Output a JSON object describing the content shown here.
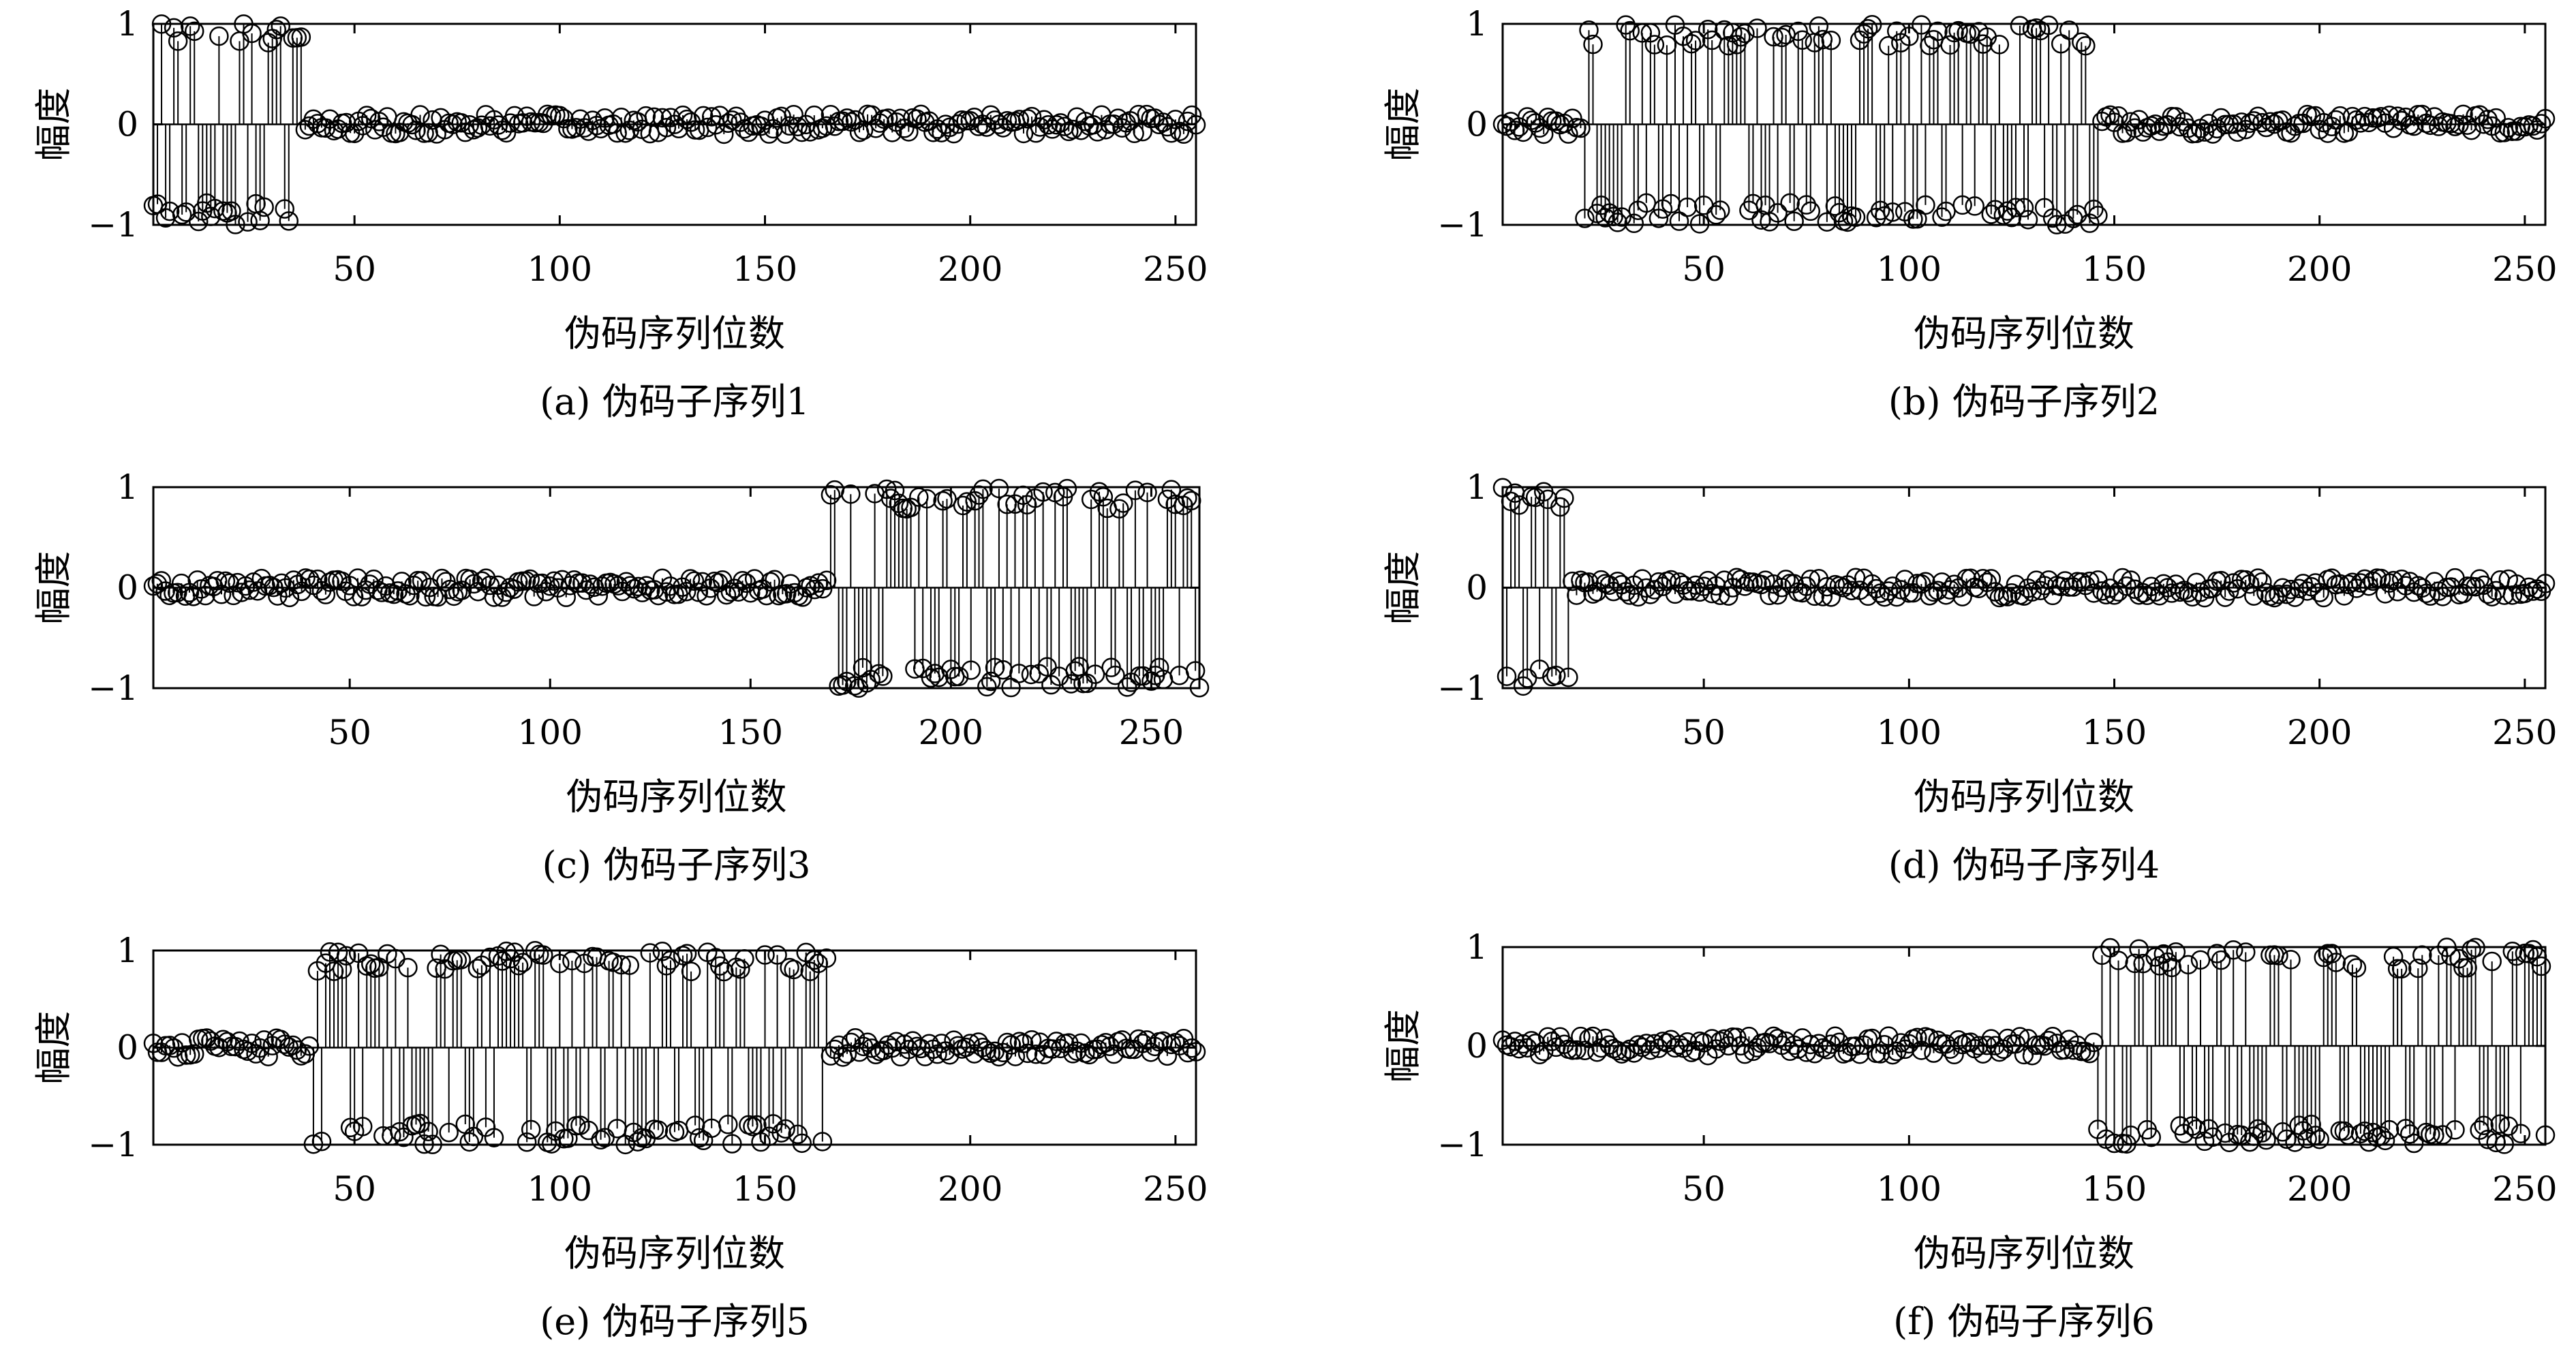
{
  "chart_data": [
    {
      "type": "stem",
      "caption": "(a) 伪码子序列1",
      "xlabel": "伪码序列位数",
      "ylabel": "幅度",
      "xlim": [
        1,
        255
      ],
      "ylim": [
        -1,
        1
      ],
      "xticks": [
        50,
        100,
        150,
        200,
        250
      ],
      "yticks": [
        -1,
        0,
        1
      ],
      "active_range": [
        1,
        37
      ],
      "points": 255
    },
    {
      "type": "stem",
      "caption": "(b) 伪码子序列2",
      "xlabel": "伪码序列位数",
      "ylabel": "幅度",
      "xlim": [
        1,
        255
      ],
      "ylim": [
        -1,
        1
      ],
      "xticks": [
        50,
        100,
        150,
        200,
        250
      ],
      "yticks": [
        -1,
        0,
        1
      ],
      "active_range": [
        21,
        146
      ],
      "points": 255
    },
    {
      "type": "stem",
      "caption": "(c) 伪码子序列3",
      "xlabel": "伪码序列位数",
      "ylabel": "幅度",
      "xlim": [
        1,
        262
      ],
      "ylim": [
        -1,
        1
      ],
      "xticks": [
        50,
        100,
        150,
        200,
        250
      ],
      "yticks": [
        -1,
        0,
        1
      ],
      "active_range": [
        170,
        262
      ],
      "points": 262
    },
    {
      "type": "stem",
      "caption": "(d) 伪码子序列4",
      "xlabel": "伪码序列位数",
      "ylabel": "幅度",
      "xlim": [
        1,
        255
      ],
      "ylim": [
        -1,
        1
      ],
      "xticks": [
        50,
        100,
        150,
        200,
        250
      ],
      "yticks": [
        -1,
        0,
        1
      ],
      "active_range": [
        1,
        17
      ],
      "points": 255
    },
    {
      "type": "stem",
      "caption": "(e) 伪码子序列5",
      "xlabel": "伪码序列位数",
      "ylabel": "幅度",
      "xlim": [
        1,
        255
      ],
      "ylim": [
        -1,
        1
      ],
      "xticks": [
        50,
        100,
        150,
        200,
        250
      ],
      "yticks": [
        -1,
        0,
        1
      ],
      "active_range": [
        40,
        165
      ],
      "points": 255
    },
    {
      "type": "stem",
      "caption": "(f) 伪码子序列6",
      "xlabel": "伪码序列位数",
      "ylabel": "幅度",
      "xlim": [
        1,
        255
      ],
      "ylim": [
        -1,
        1
      ],
      "xticks": [
        50,
        100,
        150,
        200,
        250
      ],
      "yticks": [
        -1,
        0,
        1
      ],
      "active_range": [
        146,
        255
      ],
      "points": 255
    }
  ]
}
